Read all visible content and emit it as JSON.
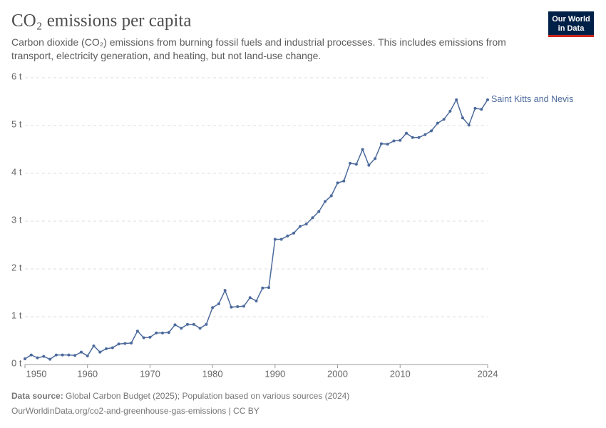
{
  "chart_data": {
    "type": "line",
    "title": "CO₂ emissions per capita",
    "subtitle": "Carbon dioxide (CO₂) emissions from burning fossil fuels and industrial processes. This includes emissions from transport, electricity generation, and heating, but not land-use change.",
    "logo": [
      "Our World",
      "in Data"
    ],
    "source_label": "Data source:",
    "source": "Global Carbon Budget (2025); Population based on various sources (2024)",
    "url": "OurWorldinData.org/co2-and-greenhouse-gas-emissions | CC BY",
    "x": [
      1950,
      1951,
      1952,
      1953,
      1954,
      1955,
      1956,
      1957,
      1958,
      1959,
      1960,
      1961,
      1962,
      1963,
      1964,
      1965,
      1966,
      1967,
      1968,
      1969,
      1970,
      1971,
      1972,
      1973,
      1974,
      1975,
      1976,
      1977,
      1978,
      1979,
      1980,
      1981,
      1982,
      1983,
      1984,
      1985,
      1986,
      1987,
      1988,
      1989,
      1990,
      1991,
      1992,
      1993,
      1994,
      1995,
      1996,
      1997,
      1998,
      1999,
      2000,
      2001,
      2002,
      2003,
      2004,
      2005,
      2006,
      2007,
      2008,
      2009,
      2010,
      2011,
      2012,
      2013,
      2014,
      2015,
      2016,
      2017,
      2018,
      2019,
      2020,
      2021,
      2022,
      2023,
      2024
    ],
    "series": [
      {
        "name": "Saint Kitts and Nevis",
        "color": "#4c6a9c",
        "values": [
          0.12,
          0.2,
          0.14,
          0.17,
          0.11,
          0.2,
          0.2,
          0.2,
          0.19,
          0.26,
          0.18,
          0.39,
          0.26,
          0.33,
          0.35,
          0.43,
          0.44,
          0.45,
          0.7,
          0.56,
          0.57,
          0.66,
          0.66,
          0.67,
          0.83,
          0.76,
          0.84,
          0.84,
          0.76,
          0.84,
          1.19,
          1.27,
          1.55,
          1.2,
          1.21,
          1.22,
          1.4,
          1.33,
          1.6,
          1.61,
          2.62,
          2.62,
          2.69,
          2.75,
          2.89,
          2.94,
          3.07,
          3.2,
          3.41,
          3.53,
          3.8,
          3.84,
          4.21,
          4.19,
          4.5,
          4.17,
          4.31,
          4.62,
          4.61,
          4.68,
          4.69,
          4.84,
          4.75,
          4.75,
          4.81,
          4.89,
          5.05,
          5.13,
          5.3,
          5.54,
          5.16,
          5.01,
          5.36,
          5.34,
          5.54
        ]
      }
    ],
    "xlim": [
      1950,
      2024
    ],
    "xticks": [
      1950,
      1960,
      1970,
      1980,
      1990,
      2000,
      2010,
      2024
    ],
    "ylim": [
      0,
      6
    ],
    "yticks": [
      {
        "value": 0,
        "label": "0 t"
      },
      {
        "value": 1,
        "label": "1 t"
      },
      {
        "value": 2,
        "label": "2 t"
      },
      {
        "value": 3,
        "label": "3 t"
      },
      {
        "value": 4,
        "label": "4 t"
      },
      {
        "value": 5,
        "label": "5 t"
      },
      {
        "value": 6,
        "label": "6 t"
      }
    ],
    "grid": true
  }
}
